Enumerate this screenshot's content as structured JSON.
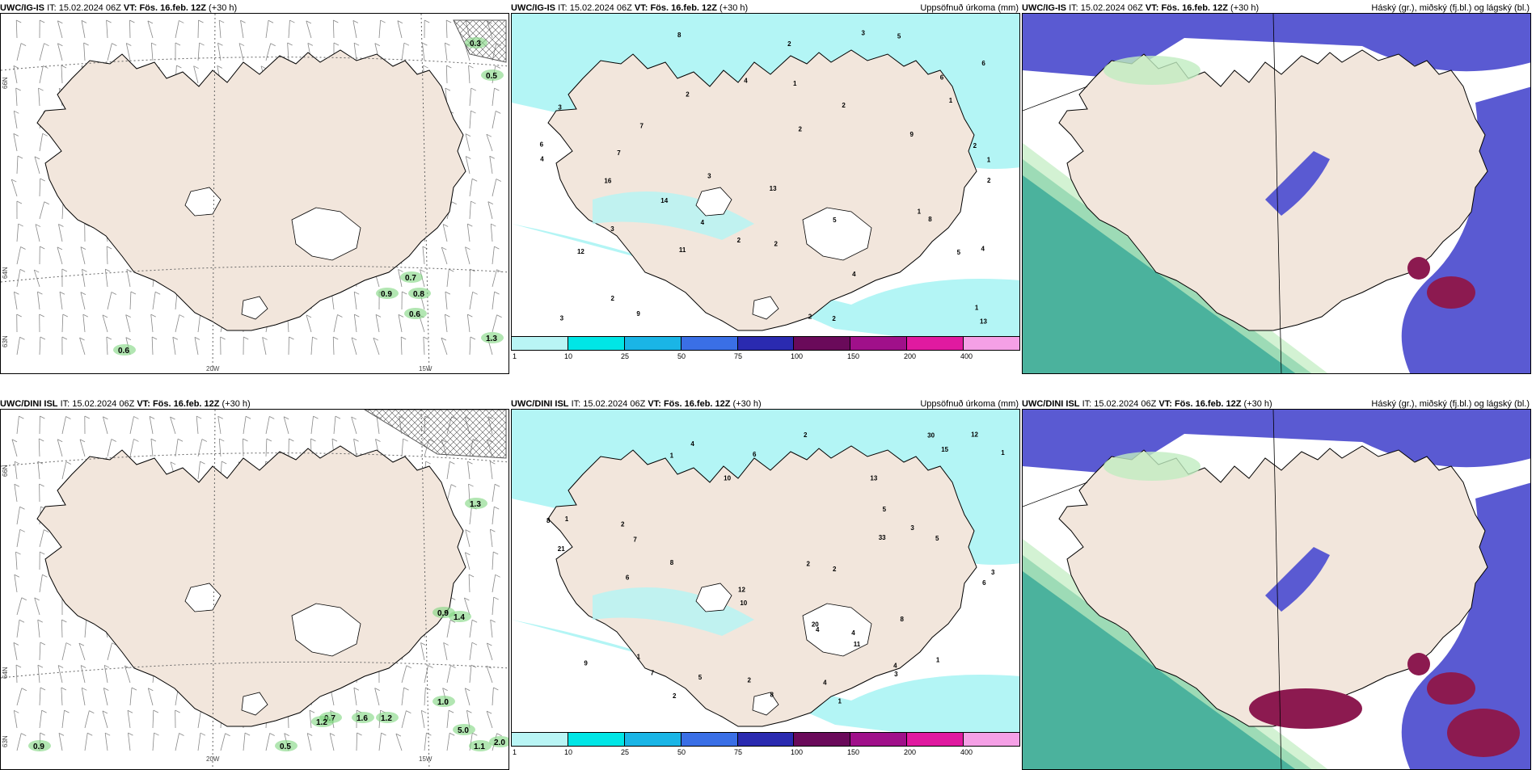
{
  "header": {
    "it_prefix": "IT:",
    "issue_time": "15.02.2024 06Z",
    "vt_prefix": "VT:",
    "valid_time": "Fös. 16.feb. 12Z",
    "lead": "(+30 h)"
  },
  "models": {
    "top": "UWC/IG-IS",
    "bottom": "UWC/DINI ISL"
  },
  "panel_titles": {
    "precip": "Uppsöfnuð úrkoma (mm)",
    "clouds": "Háský (gr.), miðský (fj.bl.) og lágský (bl.)"
  },
  "axis_labels": {
    "lat66": "66N",
    "lat64": "64N",
    "lat63": "63N",
    "lon20": "20W",
    "lon15": "15W"
  },
  "legend": {
    "ticks": [
      "1",
      "10",
      "25",
      "50",
      "75",
      "100",
      "150",
      "200",
      "400"
    ],
    "colors": [
      "#b9f5f5",
      "#00e6e6",
      "#1ab5e6",
      "#3a6fe6",
      "#2a2ab0",
      "#6a0a5a",
      "#a0108a",
      "#e01aa0",
      "#f5a0e6"
    ]
  },
  "colors": {
    "land": "#f2e6dc",
    "sea_precip": "#b3f5f5",
    "low_cloud": "#5a5ad2",
    "mid_cloud": "#2ca58c",
    "high_cloud": "#c0ecc0",
    "heavy": "#8c1a50"
  },
  "wind_labels_top": [
    "0.3",
    "0.5",
    "0.7",
    "0.9",
    "0.8",
    "0.6",
    "0.6",
    "1.3"
  ],
  "wind_labels_bottom": [
    "1.3",
    "0.9",
    "1.4",
    "1.2",
    "1.6",
    "0.7",
    "1.2",
    "1.0",
    "5.0",
    "1.1",
    "2.0",
    "0.5",
    "0.9"
  ],
  "precip_numbers_top": [
    "2",
    "2",
    "2",
    "1",
    "3",
    "4",
    "4",
    "3",
    "5",
    "6",
    "7",
    "8",
    "9",
    "11",
    "12",
    "13",
    "14",
    "6",
    "8",
    "4",
    "1",
    "1",
    "2",
    "3",
    "2",
    "5",
    "3",
    "4",
    "2",
    "6",
    "9",
    "13",
    "16",
    "2",
    "7",
    "4",
    "2",
    "5",
    "1",
    "1",
    "2",
    "3",
    "2",
    "2"
  ],
  "precip_numbers_bottom": [
    "1",
    "1",
    "1",
    "2",
    "3",
    "4",
    "6",
    "8",
    "10",
    "7",
    "9",
    "8",
    "12",
    "20",
    "33",
    "30",
    "21",
    "15",
    "8",
    "5",
    "4",
    "4",
    "2",
    "3",
    "2",
    "5",
    "6",
    "7",
    "8",
    "10",
    "11",
    "12",
    "13",
    "5",
    "4",
    "2",
    "2",
    "1",
    "3",
    "4",
    "6",
    "2",
    "1",
    "1"
  ]
}
